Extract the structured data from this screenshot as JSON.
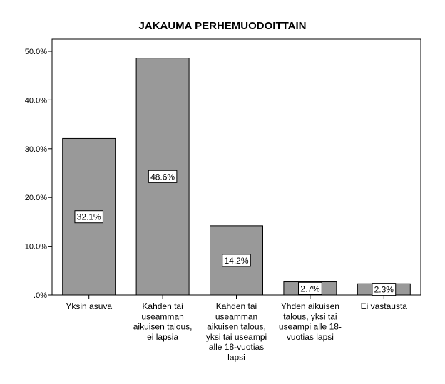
{
  "chart_data": {
    "type": "bar",
    "title": "JAKAUMA PERHEMUODOITTAIN",
    "categories": [
      [
        "Yksin asuva"
      ],
      [
        "Kahden tai",
        "useamman",
        "aikuisen talous,",
        "ei lapsia"
      ],
      [
        "Kahden tai",
        "useamman",
        "aikuisen talous,",
        "yksi tai useampi",
        "alle 18-vuotias",
        "lapsi"
      ],
      [
        "Yhden aikuisen",
        "talous, yksi tai",
        "useampi alle 18-",
        "vuotias lapsi"
      ],
      [
        "Ei vastausta"
      ]
    ],
    "values": [
      32.1,
      48.6,
      14.2,
      2.7,
      2.3
    ],
    "data_labels": [
      "32.1%",
      "48.6%",
      "14.2%",
      "2.7%",
      "2.3%"
    ],
    "yticks": [
      ".0%",
      "10.0%",
      "20.0%",
      "30.0%",
      "40.0%",
      "50.0%"
    ],
    "ytick_values": [
      0,
      10,
      20,
      30,
      40,
      50
    ],
    "ylim": [
      0,
      50
    ],
    "xlabel": "",
    "ylabel": "",
    "bar_color": "#999999",
    "grid": false
  }
}
